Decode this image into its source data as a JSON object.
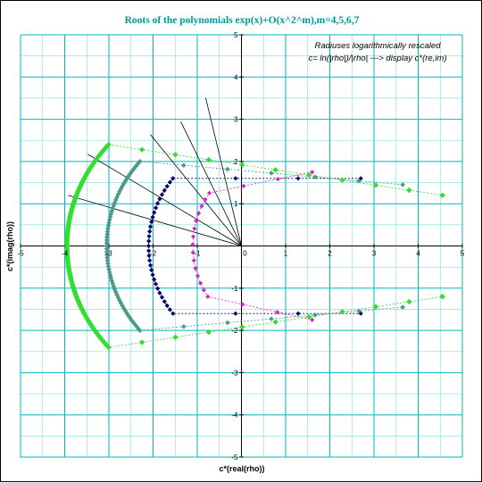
{
  "chart_data": {
    "type": "scatter",
    "title": "Roots of the polynomials exp(x)+O(x^2^m),m=4,5,6,7",
    "annotations": [
      "Radiuses logarithmically rescaled",
      "c= ln(|rho|)/|rho|   --->  display  c*(re,im)"
    ],
    "xlabel": "c*(real(rho))",
    "ylabel": "c*(imag(rho))",
    "xlim": [
      -5,
      5
    ],
    "ylim": [
      -5,
      5
    ],
    "xticks": [
      "-5",
      "-4",
      "-3",
      "-2",
      "-1",
      "0",
      "1",
      "2",
      "3",
      "4",
      "5"
    ],
    "yticks": [
      "-5",
      "-4",
      "-3",
      "-2",
      "-1",
      "0",
      "1",
      "2",
      "3",
      "4",
      "5"
    ],
    "grid": true,
    "legend": "none",
    "colors": {
      "major_grid": "#00b8b8",
      "minor_grid": "#7fdcdc",
      "axis": "#000000",
      "title": "#009999",
      "m4": "#dd22cc",
      "m5": "#000066",
      "m6": "#4a9a8a",
      "m7": "#33dd33"
    },
    "series": [
      {
        "color": "#dd22cc",
        "marker_size": 2.6,
        "center": [
          0.5,
          0
        ],
        "rx": 1.6,
        "ry": 1.95,
        "arc": [
          140,
          218
        ],
        "n": 15,
        "endpoints": [
          [
            1.6,
            1.75
          ],
          [
            1.6,
            -1.75
          ]
        ]
      },
      {
        "color": "#000066",
        "marker_size": 2.6,
        "center": [
          0.5,
          0
        ],
        "rx": 2.6,
        "ry": 2.6,
        "arc": [
          142,
          218
        ],
        "n": 31,
        "endpoints": [
          [
            2.7,
            1.6
          ],
          [
            2.7,
            -1.6
          ]
        ]
      },
      {
        "color": "#4a9a8a",
        "marker_size": 2.8,
        "center": [
          0.5,
          0
        ],
        "rx": 3.55,
        "ry": 3.25,
        "arc": [
          142,
          218
        ],
        "n": 63,
        "endpoints": [
          [
            3.65,
            1.45
          ],
          [
            3.65,
            -1.45
          ]
        ]
      },
      {
        "color": "#33dd33",
        "marker_size": 3.2,
        "center": [
          0.5,
          0
        ],
        "rx": 4.45,
        "ry": 3.9,
        "arc": [
          142,
          218
        ],
        "n": 127,
        "endpoints": [
          [
            4.55,
            1.2
          ],
          [
            4.55,
            -1.2
          ]
        ]
      }
    ],
    "rays": [
      {
        "angle_deg": 103,
        "length": 3.6
      },
      {
        "angle_deg": 115,
        "length": 3.25
      },
      {
        "angle_deg": 128,
        "length": 3.35
      },
      {
        "angle_deg": 148,
        "length": 4.1
      },
      {
        "angle_deg": 163,
        "length": 4.1
      }
    ]
  }
}
